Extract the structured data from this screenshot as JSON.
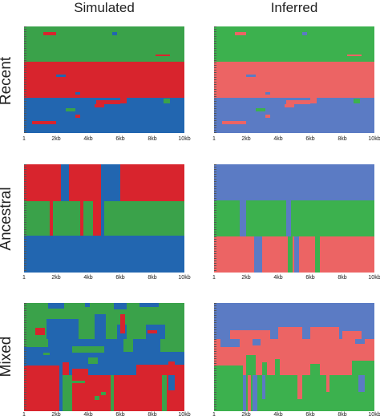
{
  "headers": {
    "simulated": "Simulated",
    "inferred": "Inferred"
  },
  "rows": {
    "recent": "Recent",
    "ancestral": "Ancestral",
    "mixed": "Mixed"
  },
  "colors": {
    "sim_green": "#3aa24a",
    "sim_red": "#d8242d",
    "sim_blue": "#2266b0",
    "inf_green": "#3cb14e",
    "inf_red": "#ec6464",
    "inf_blue": "#5b7bc4"
  },
  "axis_ticks": [
    "1",
    "2kb",
    "4kb",
    "6kb",
    "8kb",
    "10kb"
  ]
}
